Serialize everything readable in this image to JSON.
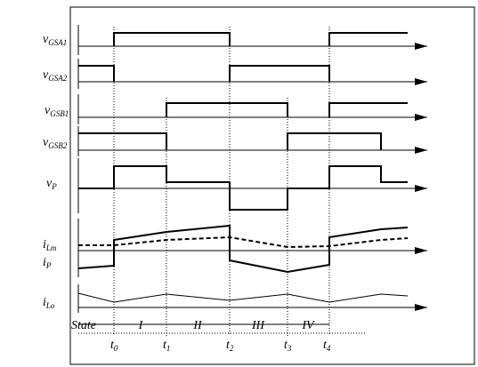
{
  "signal_labels": [
    {
      "symbol": "v",
      "subscript": "GSA1"
    },
    {
      "symbol": "v",
      "subscript": "GSA2"
    },
    {
      "symbol": "v",
      "subscript": "GSB1"
    },
    {
      "symbol": "v",
      "subscript": "GSB2"
    },
    {
      "symbol": "v",
      "subscript": "P"
    },
    {
      "symbol": "i",
      "subscript": "Lm"
    },
    {
      "symbol": "i",
      "subscript": "P"
    },
    {
      "symbol": "i",
      "subscript": "Lo"
    }
  ],
  "state": {
    "label": "State",
    "phases": [
      "I",
      "II",
      "III",
      "IV"
    ]
  },
  "time_labels": [
    {
      "symbol": "t",
      "subscript": "0"
    },
    {
      "symbol": "t",
      "subscript": "1"
    },
    {
      "symbol": "t",
      "subscript": "2"
    },
    {
      "symbol": "t",
      "subscript": "3"
    },
    {
      "symbol": "t",
      "subscript": "4"
    }
  ]
}
